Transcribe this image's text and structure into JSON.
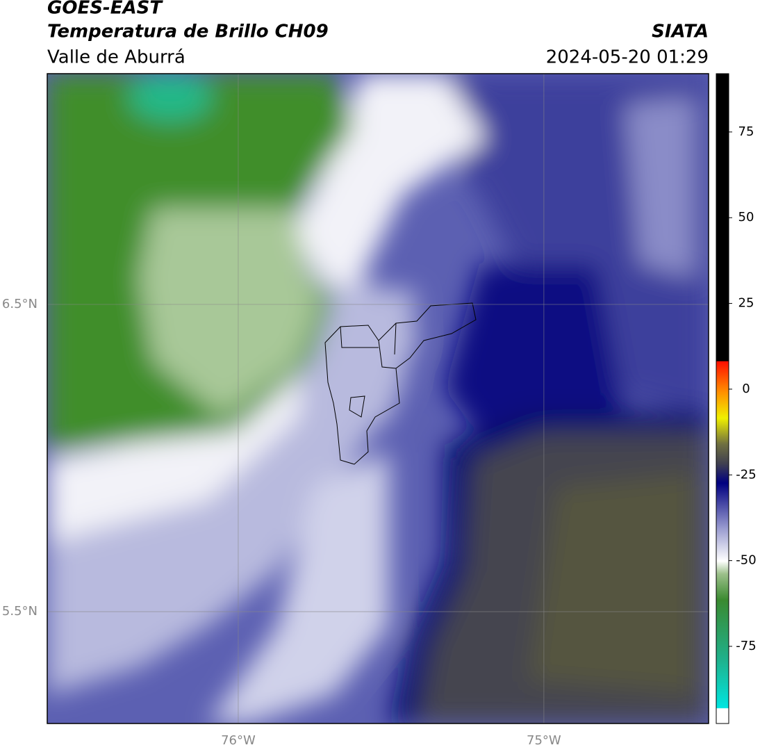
{
  "header": {
    "title": "GOES-EAST",
    "subtitle": "Temperatura de Brillo CH09",
    "region": "Valle de Aburrá",
    "source": "SIATA",
    "timestamp": "2024-05-20 01:29"
  },
  "map": {
    "xlim": [
      -76.625,
      -74.461
    ],
    "ylim": [
      5.136,
      7.251
    ],
    "xticks": [
      {
        "value": -76,
        "label": "76°W"
      },
      {
        "value": -75,
        "label": "75°W"
      }
    ],
    "yticks": [
      {
        "value": 6.5,
        "label": "6.5°N"
      },
      {
        "value": 5.5,
        "label": "5.5°N"
      }
    ],
    "grid": true
  },
  "colorbar": {
    "range": [
      -97.5,
      92
    ],
    "ticks": [
      75,
      50,
      25,
      0,
      -25,
      -50,
      -75
    ]
  }
}
